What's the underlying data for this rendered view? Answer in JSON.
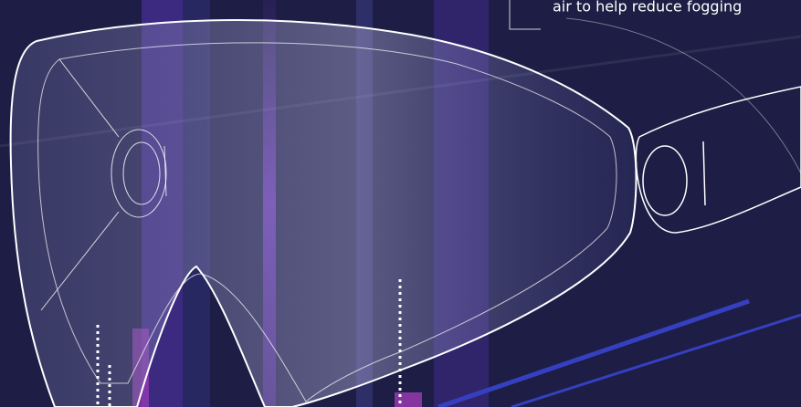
{
  "callout": {
    "text": "air to help reduce fogging"
  }
}
